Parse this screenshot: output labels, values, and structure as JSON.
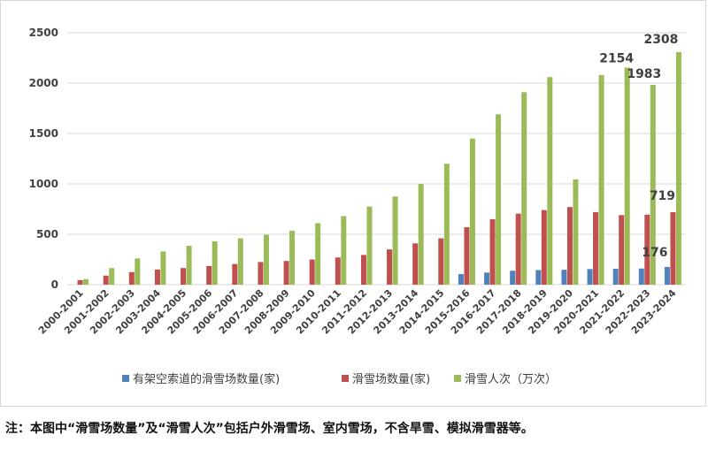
{
  "colors": {
    "series_blue": "#4f81bd",
    "series_red": "#c0504d",
    "series_green": "#9bbb59",
    "grid": "#d9d9d9",
    "text": "#404040"
  },
  "chart_data": {
    "type": "bar",
    "title": "",
    "xlabel": "",
    "ylabel": "",
    "ylim": [
      0,
      2500
    ],
    "yticks": [
      0,
      500,
      1000,
      1500,
      2000,
      2500
    ],
    "grid": true,
    "legend_position": "bottom",
    "categories": [
      "2000-2001",
      "2001-2002",
      "2002-2003",
      "2003-2004",
      "2004-2005",
      "2005-2006",
      "2006-2007",
      "2007-2008",
      "2008-2009",
      "2009-2010",
      "2010-2011",
      "2011-2012",
      "2012-2013",
      "2013-2014",
      "2014-2015",
      "2015-2016",
      "2016-2017",
      "2017-2018",
      "2018-2019",
      "2019-2020",
      "2020-2021",
      "2021-2022",
      "2022-2023",
      "2023-2024"
    ],
    "series": [
      {
        "name": "有架空索道的滑雪场数量(家)",
        "color": "#4f81bd",
        "values": [
          null,
          null,
          null,
          null,
          null,
          null,
          null,
          null,
          null,
          null,
          null,
          null,
          null,
          null,
          null,
          105,
          120,
          138,
          145,
          148,
          155,
          157,
          160,
          176
        ]
      },
      {
        "name": "滑雪场数量(家)",
        "color": "#c0504d",
        "values": [
          45,
          90,
          125,
          150,
          165,
          185,
          205,
          225,
          235,
          250,
          270,
          295,
          350,
          410,
          460,
          570,
          650,
          705,
          740,
          770,
          720,
          690,
          695,
          719
        ]
      },
      {
        "name": "滑雪人次（万次）",
        "color": "#9bbb59",
        "values": [
          55,
          165,
          260,
          330,
          385,
          430,
          460,
          495,
          535,
          610,
          680,
          775,
          875,
          1000,
          1200,
          1450,
          1690,
          1910,
          2060,
          1045,
          2080,
          2154,
          1983,
          2308
        ]
      }
    ],
    "data_labels": [
      {
        "series": 2,
        "index": 21,
        "text": "2154"
      },
      {
        "series": 2,
        "index": 22,
        "text": "1983"
      },
      {
        "series": 2,
        "index": 23,
        "text": "2308"
      },
      {
        "series": 1,
        "index": 23,
        "text": "719"
      },
      {
        "series": 0,
        "index": 23,
        "text": "176"
      }
    ]
  },
  "footnote": "注：本图中“滑雪场数量”及“滑雪人次”包括户外滑雪场、室内雪场，不含旱雪、模拟滑雪器等。"
}
